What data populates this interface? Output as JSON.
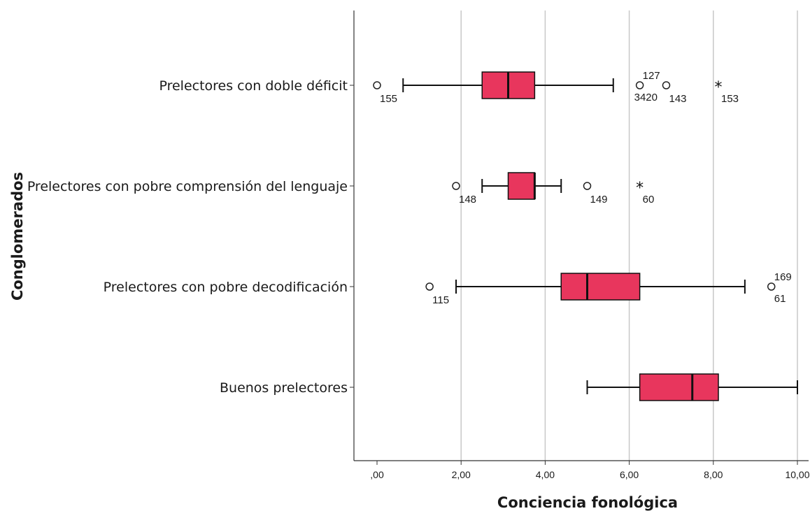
{
  "chart_data": {
    "type": "boxplot",
    "orientation": "horizontal",
    "xlabel": "Conciencia fonológica",
    "ylabel": "Conglomerados",
    "xlim": [
      0,
      10
    ],
    "x_ticks": [
      0,
      2,
      4,
      6,
      8,
      10
    ],
    "x_tick_labels": [
      ",00",
      "2,00",
      "4,00",
      "6,00",
      "8,00",
      "10,00"
    ],
    "grid": "vertical",
    "box_color": "#e8365d",
    "categories": [
      "Prelectores con doble déficit",
      "Prelectores con pobre comprensión del lenguaje",
      "Prelectores con pobre decodificación",
      "Buenos prelectores"
    ],
    "boxes": [
      {
        "category": "Prelectores con doble déficit",
        "whisker_low": 0.62,
        "q1": 2.5,
        "median": 3.12,
        "q3": 3.75,
        "whisker_high": 5.62,
        "outliers": [
          {
            "value": 0.0,
            "kind": "circle",
            "labels": [
              "155"
            ]
          },
          {
            "value": 6.25,
            "kind": "circle",
            "labels": [
              "127",
              "3420"
            ]
          },
          {
            "value": 6.88,
            "kind": "circle",
            "labels": [
              "143"
            ]
          },
          {
            "value": 8.12,
            "kind": "star",
            "labels": [
              "153"
            ]
          }
        ]
      },
      {
        "category": "Prelectores con pobre comprensión del lenguaje",
        "whisker_low": 2.5,
        "q1": 3.12,
        "median": 3.75,
        "q3": 3.75,
        "whisker_high": 4.38,
        "outliers": [
          {
            "value": 1.88,
            "kind": "circle",
            "labels": [
              "148"
            ]
          },
          {
            "value": 5.0,
            "kind": "circle",
            "labels": [
              "149"
            ]
          },
          {
            "value": 6.25,
            "kind": "star",
            "labels": [
              "60"
            ]
          }
        ]
      },
      {
        "category": "Prelectores con pobre decodificación",
        "whisker_low": 1.88,
        "q1": 4.38,
        "median": 5.0,
        "q3": 6.25,
        "whisker_high": 8.75,
        "outliers": [
          {
            "value": 1.25,
            "kind": "circle",
            "labels": [
              "115"
            ]
          },
          {
            "value": 9.38,
            "kind": "circle",
            "labels": [
              "169",
              "61"
            ]
          }
        ]
      },
      {
        "category": "Buenos prelectores",
        "whisker_low": 5.0,
        "q1": 6.25,
        "median": 7.5,
        "q3": 8.12,
        "whisker_high": 10.0,
        "outliers": []
      }
    ]
  }
}
